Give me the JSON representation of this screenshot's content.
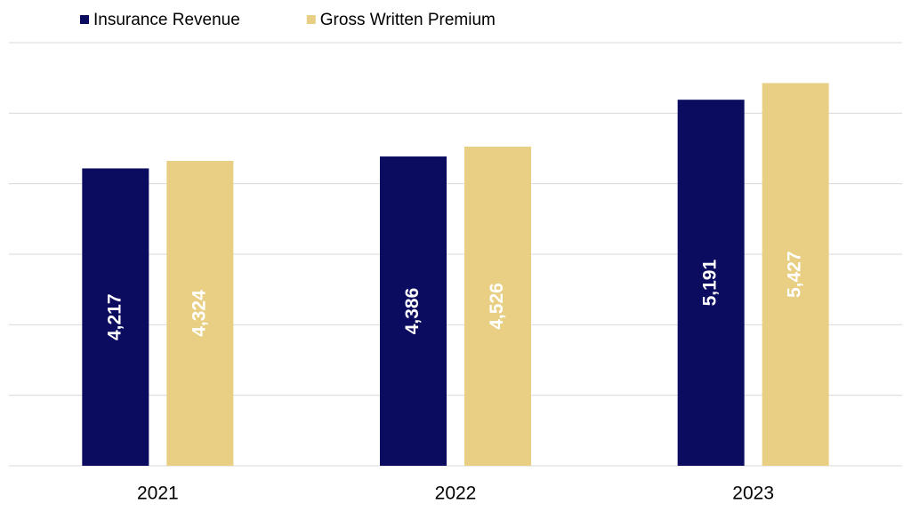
{
  "chart_data": {
    "type": "bar",
    "categories": [
      "2021",
      "2022",
      "2023"
    ],
    "series": [
      {
        "name": "Insurance Revenue",
        "color": "#0b0b5f",
        "values": [
          4217,
          4386,
          5191
        ],
        "value_labels": [
          "4,217",
          "4,386",
          "5,191"
        ]
      },
      {
        "name": "Gross Written Premium",
        "color": "#e8cf84",
        "values": [
          4324,
          4526,
          5427
        ],
        "value_labels": [
          "4,324",
          "4,526",
          "5,427"
        ]
      }
    ],
    "ylim": [
      0,
      6000
    ],
    "yticks": [
      0,
      1000,
      2000,
      3000,
      4000,
      5000,
      6000
    ],
    "grid": true,
    "legend": "top"
  }
}
